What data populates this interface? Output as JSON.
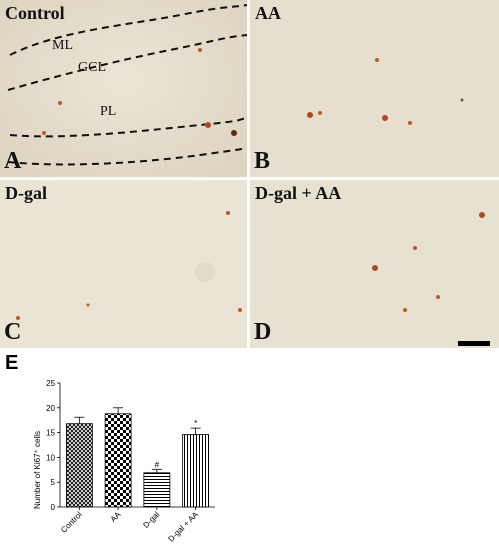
{
  "panels": [
    {
      "title": "Control",
      "letter": "A",
      "layers": [
        "ML",
        "GCL",
        "PL"
      ]
    },
    {
      "title": "AA",
      "letter": "B"
    },
    {
      "title": "D-gal",
      "letter": "C"
    },
    {
      "title": "D-gal + AA",
      "letter": "D"
    }
  ],
  "figure_letter": "E",
  "chart_data": {
    "type": "bar",
    "categories": [
      "Control",
      "AA",
      "D-gal",
      "D-gal + AA"
    ],
    "values": [
      16.8,
      18.8,
      6.9,
      14.6
    ],
    "errors": [
      1.3,
      1.2,
      0.7,
      1.3
    ],
    "annotations": [
      "",
      "",
      "#",
      "*"
    ],
    "ylabel": "Number of Ki67⁺ cells",
    "xlabel": "",
    "title": "",
    "ylim": [
      0,
      25
    ],
    "yticks": [
      0,
      5,
      10,
      15,
      20,
      25
    ],
    "patterns": [
      "crosshatch-diagonal",
      "checker",
      "horizontal-lines",
      "vertical-lines"
    ]
  }
}
